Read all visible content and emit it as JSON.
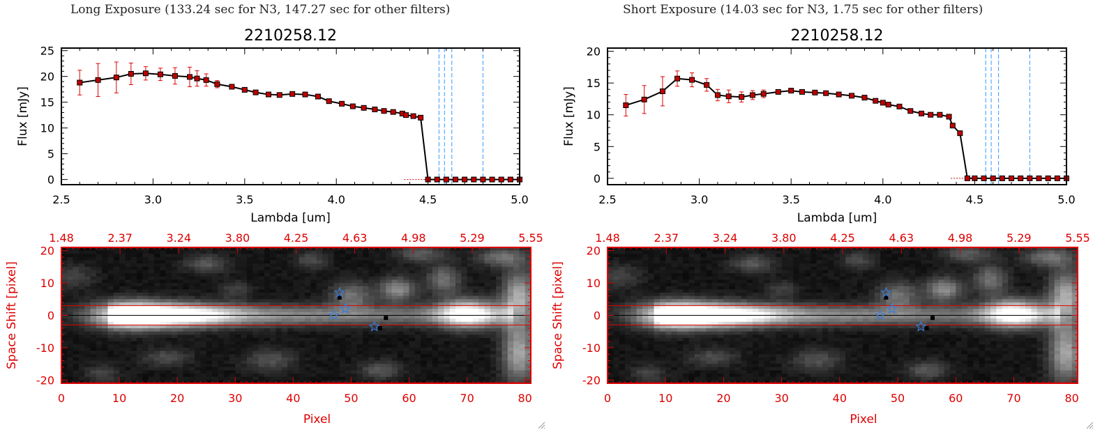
{
  "panels": [
    {
      "exposure_title": "Long Exposure (133.24 sec for N3, 147.27 sec for other filters)"
    },
    {
      "exposure_title": "Short Exposure (14.03 sec for N3, 1.75 sec for other filters)"
    }
  ],
  "colors": {
    "spectrum_line": "#000000",
    "marker": "#c00000",
    "error_bar": "#e00000",
    "vline": "#3399ff",
    "image_axes": "#dd0000",
    "star": "#3a7bd5",
    "slit_line": "#e00000"
  },
  "chart_data": [
    {
      "type": "line",
      "title": "2210258.12",
      "xlabel": "Lambda [um]",
      "ylabel": "Flux [mJy]",
      "xlim": [
        2.5,
        5.0
      ],
      "ylim": [
        -1,
        25.5
      ],
      "xticks": [
        "2.5",
        "3.0",
        "3.5",
        "4.0",
        "4.5",
        "5.0"
      ],
      "yticks": [
        "0",
        "5",
        "10",
        "15",
        "20",
        "25"
      ],
      "vlines": [
        4.56,
        4.59,
        4.63,
        4.8
      ],
      "x": [
        2.6,
        2.7,
        2.8,
        2.88,
        2.96,
        3.04,
        3.12,
        3.2,
        3.24,
        3.29,
        3.35,
        3.43,
        3.5,
        3.56,
        3.63,
        3.69,
        3.76,
        3.83,
        3.9,
        3.96,
        4.03,
        4.09,
        4.15,
        4.21,
        4.26,
        4.31,
        4.36,
        4.38,
        4.42,
        4.46,
        4.5,
        4.55,
        4.6,
        4.65,
        4.7,
        4.75,
        4.8,
        4.85,
        4.9,
        4.95,
        5.0
      ],
      "y": [
        18.8,
        19.3,
        19.8,
        20.5,
        20.6,
        20.4,
        20.1,
        19.9,
        19.6,
        19.3,
        18.5,
        18.0,
        17.4,
        16.9,
        16.5,
        16.4,
        16.6,
        16.5,
        16.1,
        15.2,
        14.7,
        14.2,
        13.9,
        13.6,
        13.3,
        13.1,
        12.8,
        12.5,
        12.3,
        12.0,
        0,
        0,
        0,
        0,
        0,
        0,
        0,
        0,
        0,
        0,
        0
      ],
      "yerr": [
        2.4,
        3.2,
        3.0,
        2.1,
        1.3,
        1.2,
        1.6,
        1.9,
        1.5,
        1.2,
        0.7,
        0.3,
        0.2,
        0.2,
        0.2,
        0.2,
        0.2,
        0.2,
        0.2,
        0.2,
        0.2,
        0.2,
        0.2,
        0.2,
        0.2,
        0.2,
        0.2,
        0.2,
        0.2,
        0.2,
        0,
        0,
        0,
        0,
        0,
        0,
        0,
        0,
        0,
        0,
        0
      ]
    },
    {
      "type": "line",
      "title": "2210258.12",
      "xlabel": "Lambda [um]",
      "ylabel": "Flux [mJy]",
      "xlim": [
        2.5,
        5.0
      ],
      "ylim": [
        -1,
        20.5
      ],
      "xticks": [
        "2.5",
        "3.0",
        "3.5",
        "4.0",
        "4.5",
        "5.0"
      ],
      "yticks": [
        "0",
        "5",
        "10",
        "15",
        "20"
      ],
      "vlines": [
        4.56,
        4.59,
        4.63,
        4.8
      ],
      "x": [
        2.6,
        2.7,
        2.8,
        2.88,
        2.96,
        3.04,
        3.1,
        3.16,
        3.23,
        3.29,
        3.35,
        3.43,
        3.5,
        3.56,
        3.63,
        3.69,
        3.76,
        3.83,
        3.9,
        3.96,
        4.0,
        4.03,
        4.09,
        4.15,
        4.21,
        4.26,
        4.31,
        4.36,
        4.38,
        4.42,
        4.46,
        4.5,
        4.55,
        4.6,
        4.65,
        4.7,
        4.75,
        4.8,
        4.85,
        4.9,
        4.95,
        5.0
      ],
      "y": [
        11.5,
        12.4,
        13.7,
        15.7,
        15.5,
        14.7,
        13.1,
        12.9,
        12.8,
        13.1,
        13.3,
        13.6,
        13.8,
        13.6,
        13.5,
        13.4,
        13.2,
        13.0,
        12.7,
        12.2,
        11.9,
        11.6,
        11.3,
        10.6,
        10.2,
        10.0,
        10.0,
        9.7,
        8.3,
        7.1,
        0,
        0,
        0,
        0,
        0,
        0,
        0,
        0,
        0,
        0,
        0,
        0
      ],
      "yerr": [
        1.7,
        2.2,
        2.3,
        1.2,
        1.1,
        1.0,
        0.9,
        1.0,
        0.8,
        0.7,
        0.6,
        0.2,
        0.2,
        0.2,
        0.2,
        0.2,
        0.2,
        0.2,
        0.2,
        0.2,
        0.2,
        0.2,
        0.2,
        0.2,
        0.2,
        0.2,
        0.2,
        0.2,
        0.2,
        0.2,
        0,
        0,
        0,
        0,
        0,
        0,
        0,
        0,
        0,
        0,
        0,
        0
      ]
    },
    {
      "type": "heatmap",
      "xlabel": "Pixel",
      "ylabel": "Space Shift [pixel]",
      "xlim": [
        0,
        81
      ],
      "ylim": [
        -21,
        21
      ],
      "xticks": [
        "0",
        "10",
        "20",
        "30",
        "40",
        "50",
        "60",
        "70",
        "80"
      ],
      "yticks": [
        "20",
        "10",
        "0",
        "-10",
        "-20"
      ],
      "top_ticks": [
        "1.48",
        "2.37",
        "3.24",
        "3.80",
        "4.25",
        "4.63",
        "4.98",
        "5.29",
        "5.55"
      ],
      "slit_lines": [
        3,
        -3
      ],
      "stars": [
        [
          48,
          7
        ],
        [
          49,
          2
        ],
        [
          47,
          0
        ],
        [
          54,
          -3.5
        ]
      ]
    },
    {
      "type": "heatmap",
      "xlabel": "Pixel",
      "ylabel": "Space Shift [pixel]",
      "xlim": [
        0,
        81
      ],
      "ylim": [
        -21,
        21
      ],
      "xticks": [
        "0",
        "10",
        "20",
        "30",
        "40",
        "50",
        "60",
        "70",
        "80"
      ],
      "yticks": [
        "20",
        "10",
        "0",
        "-10",
        "-20"
      ],
      "top_ticks": [
        "1.48",
        "2.37",
        "3.24",
        "3.80",
        "4.25",
        "4.63",
        "4.98",
        "5.29",
        "5.55"
      ],
      "slit_lines": [
        3,
        -3
      ],
      "stars": [
        [
          48,
          7
        ],
        [
          49,
          2
        ],
        [
          47,
          0
        ],
        [
          54,
          -3.5
        ]
      ]
    }
  ]
}
